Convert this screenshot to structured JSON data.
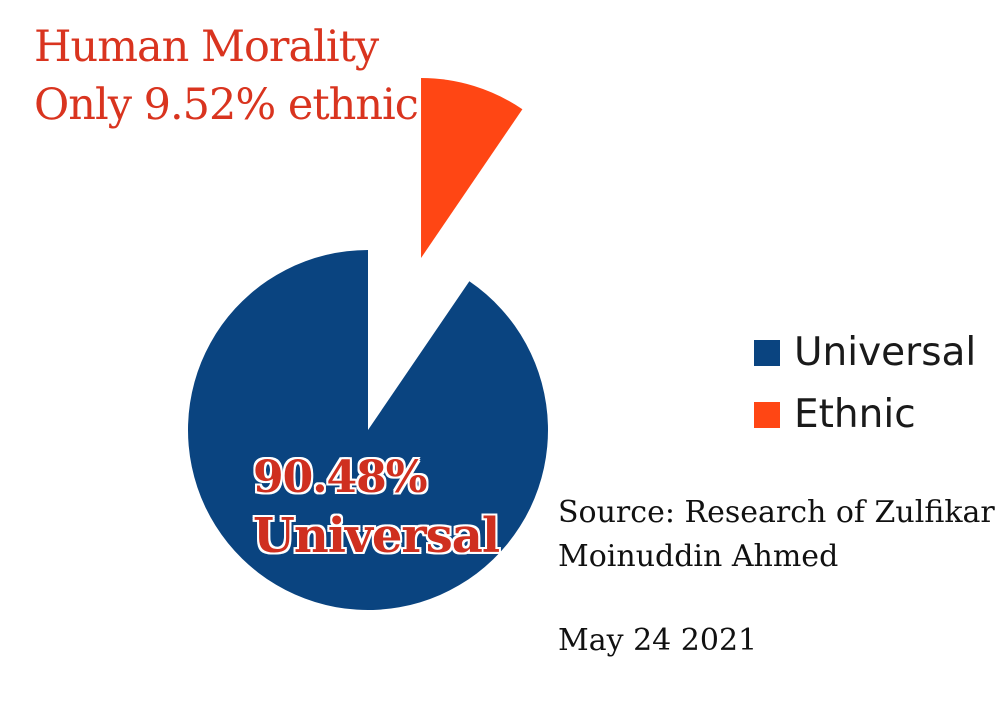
{
  "title": {
    "line1": "Human Morality",
    "line2": "Only 9.52% ethnic"
  },
  "chart_data": {
    "type": "pie",
    "categories": [
      "Universal",
      "Ethnic"
    ],
    "values": [
      90.48,
      9.52
    ],
    "colors": [
      "#0a4480",
      "#ff4614"
    ],
    "exploded": [
      false,
      true
    ],
    "legend_position": "right",
    "annotations": {
      "universal_value": "90.48%",
      "universal_name": "Universal"
    }
  },
  "legend": {
    "items": [
      {
        "label": "Universal",
        "color": "#0a4480"
      },
      {
        "label": "Ethnic",
        "color": "#ff4614"
      }
    ]
  },
  "source": {
    "line1": "Source: Research of Zulfikar",
    "line2": "Moinuddin Ahmed",
    "date": "May 24 2021"
  }
}
